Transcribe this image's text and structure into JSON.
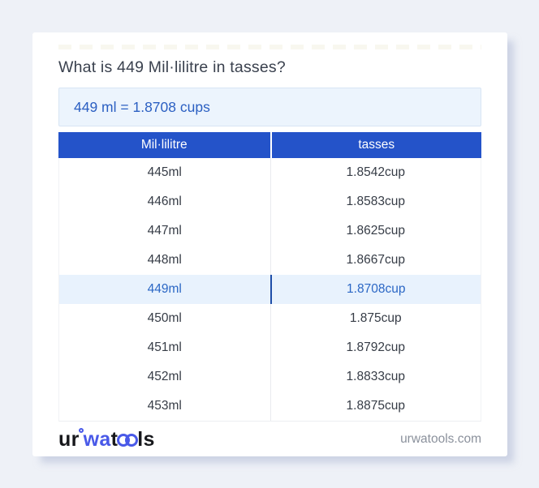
{
  "title": "What is 449 Mil·lilitre in tasses?",
  "answer_box": {
    "text": "449 ml = 1.8708 cups"
  },
  "table": {
    "columns": [
      {
        "label": "Mil·lilitre"
      },
      {
        "label": "tasses"
      }
    ],
    "rows": [
      {
        "ml": "445ml",
        "cups": "1.8542cup"
      },
      {
        "ml": "446ml",
        "cups": "1.8583cup"
      },
      {
        "ml": "447ml",
        "cups": "1.8625cup"
      },
      {
        "ml": "448ml",
        "cups": "1.8667cup"
      },
      {
        "ml": "449ml",
        "cups": "1.8708cup"
      },
      {
        "ml": "450ml",
        "cups": "1.875cup"
      },
      {
        "ml": "451ml",
        "cups": "1.8792cup"
      },
      {
        "ml": "452ml",
        "cups": "1.8833cup"
      },
      {
        "ml": "453ml",
        "cups": "1.8875cup"
      }
    ],
    "highlighted_value": "449ml"
  },
  "footer": {
    "logo": {
      "seg1": "ur",
      "seg2": "wa",
      "seg3": "t",
      "seg4": "ls"
    },
    "site": "urwatools.com"
  },
  "colors": {
    "page_background": "#eef1f7",
    "header_blue": "#2453c9",
    "answer_bg": "#ecf4fd",
    "answer_text": "#2b5fc2",
    "highlight_row_bg": "#e8f2fd",
    "highlight_text": "#2b67c5",
    "logo_blue": "#4959e8",
    "body_text": "#363c46",
    "muted_text": "#8b919c"
  }
}
